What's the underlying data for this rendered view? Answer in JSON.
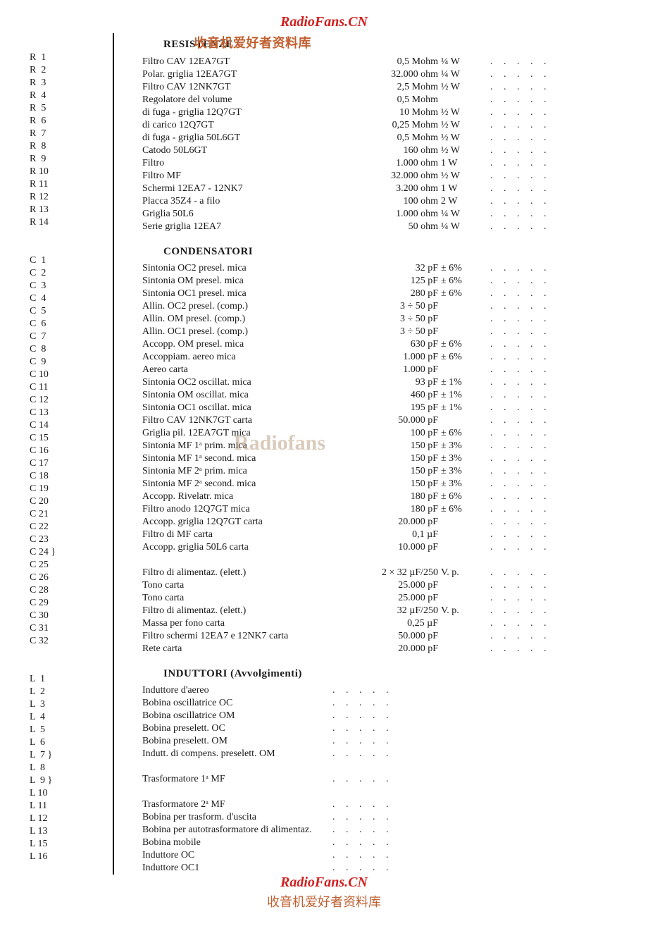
{
  "watermarks": {
    "top_brand": "RadioFans.CN",
    "chinese1": "收音机爱好者资料库",
    "mid_faint": "Radiofans",
    "bottom_brand": "RadioFans.CN",
    "chinese2": "收音机爱好者资料库"
  },
  "sections": {
    "resistenze": {
      "title": "RESISTENZE",
      "rows": [
        {
          "ref": "R  1",
          "desc": "Filtro CAV 12EA7GT",
          "val": "0,5 Mohm",
          "tol": "¼ W"
        },
        {
          "ref": "R  2",
          "desc": "Polar. griglia 12EA7GT",
          "val": "32.000 ohm",
          "tol": "¼ W"
        },
        {
          "ref": "R  3",
          "desc": "Filtro CAV 12NK7GT",
          "val": "2,5 Mohm",
          "tol": "½ W"
        },
        {
          "ref": "R  4",
          "desc": "Regolatore del volume",
          "val": "0,5 Mohm",
          "tol": ""
        },
        {
          "ref": "R  5",
          "desc": "di fuga - griglia 12Q7GT",
          "val": "10 Mohm",
          "tol": "½ W"
        },
        {
          "ref": "R  6",
          "desc": "di carico 12Q7GT",
          "val": "0,25 Mohm",
          "tol": "½ W"
        },
        {
          "ref": "R  7",
          "desc": "di fuga - griglia 50L6GT",
          "val": "0,5 Mohm",
          "tol": "½ W"
        },
        {
          "ref": "R  8",
          "desc": "Catodo 50L6GT",
          "val": "160 ohm",
          "tol": "½ W"
        },
        {
          "ref": "R  9",
          "desc": "Filtro",
          "val": "1.000 ohm",
          "tol": "1 W"
        },
        {
          "ref": "R 10",
          "desc": "Filtro MF",
          "val": "32.000 ohm",
          "tol": "½ W"
        },
        {
          "ref": "R 11",
          "desc": "Schermi 12EA7 - 12NK7",
          "val": "3.200 ohm",
          "tol": "1 W"
        },
        {
          "ref": "R 12",
          "desc": "Placca 35Z4 - a filo",
          "val": "100 ohm",
          "tol": "2 W"
        },
        {
          "ref": "R 13",
          "desc": "Griglia 50L6",
          "val": "1.000 ohm",
          "tol": "¼ W"
        },
        {
          "ref": "R 14",
          "desc": "Serie griglia 12EA7",
          "val": "50 ohm",
          "tol": "¼ W"
        }
      ]
    },
    "condensatori": {
      "title": "CONDENSATORI",
      "rows": [
        {
          "ref": "C  1",
          "desc": "Sintonia OC2 presel. mica",
          "val": "32 pF",
          "tol": "± 6%"
        },
        {
          "ref": "C  2",
          "desc": "Sintonia OM presel. mica",
          "val": "125 pF",
          "tol": "± 6%"
        },
        {
          "ref": "C  3",
          "desc": "Sintonia OC1 presel. mica",
          "val": "280 pF",
          "tol": "± 6%"
        },
        {
          "ref": "C  4",
          "desc": "Allin. OC2 presel. (comp.)",
          "val": "3 ÷ 50 pF",
          "tol": ""
        },
        {
          "ref": "C  5",
          "desc": "Allin. OM presel. (comp.)",
          "val": "3 ÷ 50 pF",
          "tol": ""
        },
        {
          "ref": "C  6",
          "desc": "Allin. OC1 presel. (comp.)",
          "val": "3 ÷ 50 pF",
          "tol": ""
        },
        {
          "ref": "C  7",
          "desc": "Accopp. OM presel. mica",
          "val": "630 pF",
          "tol": "± 6%"
        },
        {
          "ref": "C  8",
          "desc": "Accoppiam. aereo mica",
          "val": "1.000 pF",
          "tol": "± 6%"
        },
        {
          "ref": "C  9",
          "desc": "Aereo carta",
          "val": "1.000 pF",
          "tol": ""
        },
        {
          "ref": "C 10",
          "desc": "Sintonia OC2 oscillat. mica",
          "val": "93 pF",
          "tol": "± 1%"
        },
        {
          "ref": "C 11",
          "desc": "Sintonia OM oscillat. mica",
          "val": "460 pF",
          "tol": "± 1%"
        },
        {
          "ref": "C 12",
          "desc": "Sintonia OC1 oscillat. mica",
          "val": "195 pF",
          "tol": "± 1%"
        },
        {
          "ref": "C 13",
          "desc": "Filtro CAV 12NK7GT carta",
          "val": "50.000 pF",
          "tol": ""
        },
        {
          "ref": "C 14",
          "desc": "Griglia pil. 12EA7GT mica",
          "val": "100 pF",
          "tol": "± 6%"
        },
        {
          "ref": "C 15",
          "desc": "Sintonia MF 1ᵃ prim. mica",
          "val": "150 pF",
          "tol": "± 3%"
        },
        {
          "ref": "C 16",
          "desc": "Sintonia MF 1ᵃ second. mica",
          "val": "150 pF",
          "tol": "± 3%"
        },
        {
          "ref": "C 17",
          "desc": "Sintonia MF 2ᵃ prim. mica",
          "val": "150 pF",
          "tol": "± 3%"
        },
        {
          "ref": "C 18",
          "desc": "Sintonia MF 2ᵃ second. mica",
          "val": "150 pF",
          "tol": "± 3%"
        },
        {
          "ref": "C 19",
          "desc": "Accopp. Rivelatr. mica",
          "val": "180 pF",
          "tol": "± 6%"
        },
        {
          "ref": "C 20",
          "desc": "Filtro anodo 12Q7GT mica",
          "val": "180 pF",
          "tol": "± 6%"
        },
        {
          "ref": "C 21",
          "desc": "Accopp. griglia 12Q7GT carta",
          "val": "20.000 pF",
          "tol": ""
        },
        {
          "ref": "C 22",
          "desc": "Filtro di MF carta",
          "val": "0,1 µF",
          "tol": ""
        },
        {
          "ref": "C 23",
          "desc": "Accopp. griglia 50L6 carta",
          "val": "10.000 pF",
          "tol": ""
        },
        {
          "ref": "C 24 }",
          "desc": "",
          "val": "",
          "tol": ""
        },
        {
          "ref": "C 25",
          "desc": "Filtro di alimentaz. (elett.)",
          "val": "2 × 32 µF/250",
          "tol": "V. p."
        },
        {
          "ref": "C 26",
          "desc": "Tono carta",
          "val": "25.000 pF",
          "tol": ""
        },
        {
          "ref": "C 28",
          "desc": "Tono carta",
          "val": "25.000 pF",
          "tol": ""
        },
        {
          "ref": "C 29",
          "desc": "Filtro di alimentaz. (elett.)",
          "val": "32 µF/250",
          "tol": "V. p."
        },
        {
          "ref": "C 30",
          "desc": "Massa per fono carta",
          "val": "0,25 µF",
          "tol": ""
        },
        {
          "ref": "C 31",
          "desc": "Filtro schermi 12EA7 e 12NK7 carta",
          "val": "50.000 pF",
          "tol": ""
        },
        {
          "ref": "C 32",
          "desc": "Rete carta",
          "val": "20.000 pF",
          "tol": ""
        }
      ]
    },
    "induttori": {
      "title": "INDUTTORI (Avvolgimenti)",
      "rows": [
        {
          "ref": "L  1",
          "desc": "Induttore d'aereo"
        },
        {
          "ref": "L  2",
          "desc": "Bobina oscillatrice OC"
        },
        {
          "ref": "L  3",
          "desc": "Bobina oscillatrice OM"
        },
        {
          "ref": "L  4",
          "desc": "Bobina preselett. OC"
        },
        {
          "ref": "L  5",
          "desc": "Bobina preselett. OM"
        },
        {
          "ref": "L  6",
          "desc": "Indutt. di compens. preselett. OM"
        },
        {
          "ref": "L  7 }",
          "desc": ""
        },
        {
          "ref": "L  8",
          "desc": "Trasformatore 1ᵃ MF"
        },
        {
          "ref": "L  9 }",
          "desc": ""
        },
        {
          "ref": "L 10",
          "desc": "Trasformatore 2ᵃ MF"
        },
        {
          "ref": "L 11",
          "desc": "Bobina per trasform. d'uscita"
        },
        {
          "ref": "L 12",
          "desc": "Bobina per autotrasformatore di alimentaz."
        },
        {
          "ref": "L 13",
          "desc": "Bobina mobile"
        },
        {
          "ref": "L 15",
          "desc": "Induttore OC"
        },
        {
          "ref": "L 16",
          "desc": "Induttore OC1"
        }
      ]
    }
  }
}
